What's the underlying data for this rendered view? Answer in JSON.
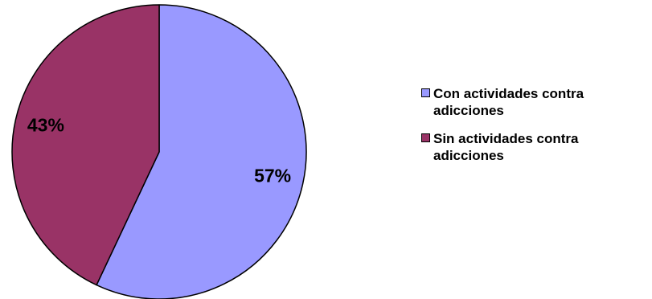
{
  "chart_data": {
    "type": "pie",
    "categories": [
      "Con actividades contra adicciones",
      "Sin actividades contra adicciones"
    ],
    "values": [
      57,
      43
    ],
    "data_labels": [
      "57%",
      "43%"
    ],
    "colors": [
      "#9999ff",
      "#993366"
    ],
    "start_angle": "12 o'clock",
    "direction": "clockwise",
    "legend": {
      "position": "right",
      "items": [
        {
          "label": "Con actividades contra adicciones",
          "color": "#9999ff"
        },
        {
          "label": "Sin actividades contra adicciones",
          "color": "#993366"
        }
      ]
    }
  }
}
